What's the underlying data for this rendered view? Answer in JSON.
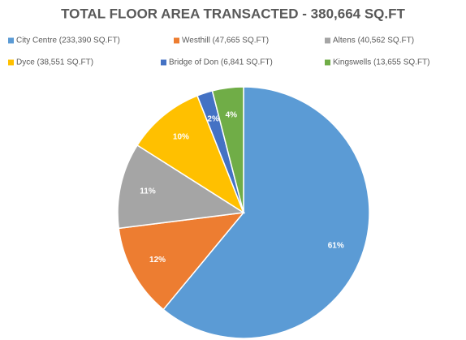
{
  "chart_data": {
    "type": "pie",
    "title": "TOTAL FLOOR AREA TRANSACTED - 380,664 SQ.FT",
    "categories": [
      "City Centre (233,390 SQ.FT)",
      "Westhill (47,665 SQ.FT)",
      "Altens (40,562 SQ.FT)",
      "Dyce (38,551 SQ.FT)",
      "Bridge of Don (6,841 SQ.FT)",
      "Kingswells (13,655 SQ.FT)"
    ],
    "values": [
      61,
      12,
      11,
      10,
      2,
      4
    ],
    "value_labels": [
      "61%",
      "12%",
      "11%",
      "10%",
      "2%",
      "4%"
    ],
    "colors": [
      "#5b9bd5",
      "#ed7d31",
      "#a5a5a5",
      "#ffc000",
      "#4472c4",
      "#70ad47"
    ],
    "legend": "top"
  }
}
